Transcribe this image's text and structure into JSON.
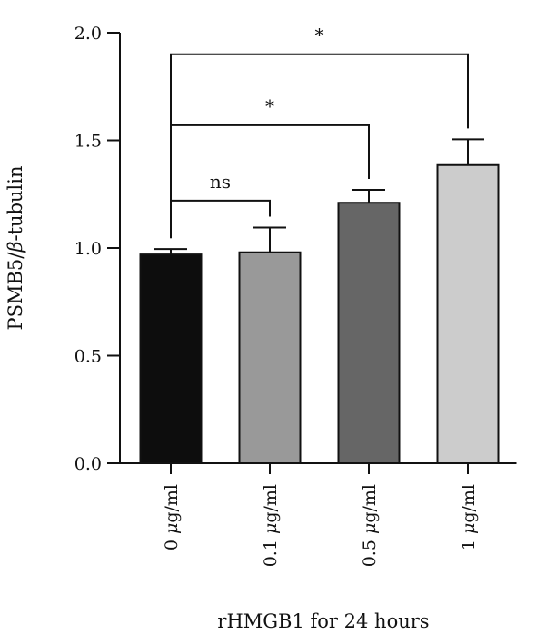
{
  "chart_data": {
    "type": "bar",
    "title": "",
    "ylabel_parts": [
      "PSMB5/",
      "β",
      "-tubulin"
    ],
    "xlabel": "rHMGB1 for 24 hours",
    "ylim": [
      0,
      2.0
    ],
    "yticks": [
      "0.0",
      "0.5",
      "1.0",
      "1.5",
      "2.0"
    ],
    "categories": [
      {
        "num": "0",
        "mu": "μ",
        "unit": "g/ml"
      },
      {
        "num": "0.1",
        "mu": "μ",
        "unit": "g/ml"
      },
      {
        "num": "0.5",
        "mu": "μ",
        "unit": "g/ml"
      },
      {
        "num": "1",
        "mu": "μ",
        "unit": "g/ml"
      }
    ],
    "values": [
      0.97,
      0.98,
      1.21,
      1.385
    ],
    "errors": [
      0.025,
      0.115,
      0.06,
      0.12
    ],
    "bar_colors": [
      "#0d0d0d",
      "#999999",
      "#666666",
      "#cccccc"
    ],
    "grid": false,
    "significance": [
      {
        "from": 0,
        "to": 1,
        "label": "ns",
        "y": 1.22
      },
      {
        "from": 0,
        "to": 2,
        "label": "*",
        "y": 1.57
      },
      {
        "from": 0,
        "to": 3,
        "label": "*",
        "y": 1.9
      }
    ]
  }
}
